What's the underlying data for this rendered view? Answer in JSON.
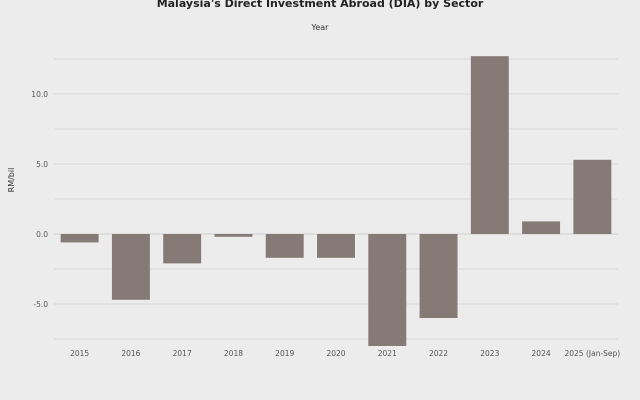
{
  "chart_data": {
    "type": "bar",
    "title": "Malaysia's Direct Investment Abroad (DIA) by Sector",
    "legend_title": "Year",
    "xlabel": "",
    "ylabel": "RM/bil",
    "categories": [
      "2015",
      "2016",
      "2017",
      "2018",
      "2019",
      "2020",
      "2021",
      "2022",
      "2023",
      "2024",
      "2025 (Jan-Sep)"
    ],
    "values": [
      -0.6,
      -4.7,
      -2.1,
      -0.2,
      -1.7,
      -1.7,
      -8.0,
      -6.0,
      12.7,
      0.9,
      5.3
    ],
    "ylim": [
      -8.0,
      14.0
    ],
    "yticks": [
      -5.0,
      0.0,
      5.0,
      10.0
    ],
    "ytick_labels": [
      "-5.0",
      "0.0",
      "5.0",
      "10.0"
    ],
    "gridlines": [
      -7.5,
      -5.0,
      -2.5,
      0.0,
      2.5,
      5.0,
      7.5,
      10.0,
      12.5
    ],
    "grid": true,
    "colors": {
      "bar": "#857a76",
      "background": "#ececec",
      "grid": "#d8d8d8"
    }
  }
}
